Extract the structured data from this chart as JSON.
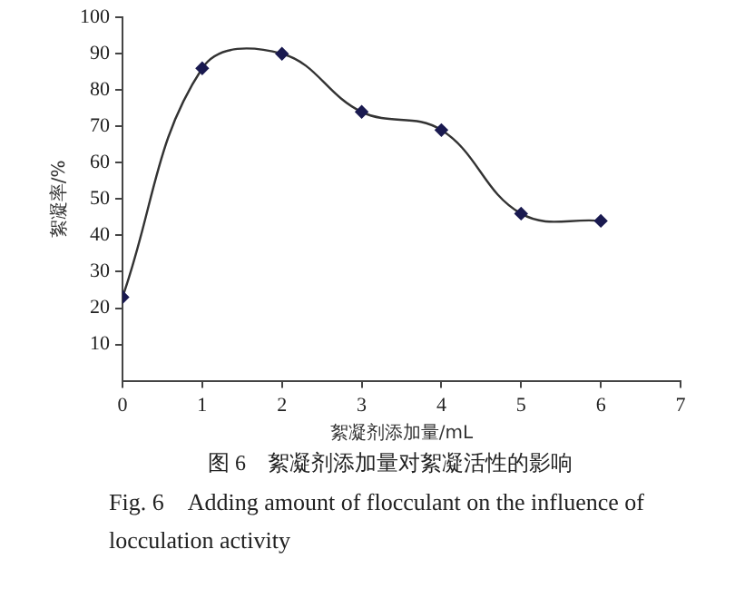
{
  "chart_data": {
    "type": "line",
    "xlabel": "絮凝剂添加量/mL",
    "ylabel": "絮凝率/%",
    "x": [
      0,
      1,
      2,
      3,
      4,
      5,
      6
    ],
    "series": [
      {
        "color": "#1a1a50",
        "values": [
          23,
          86,
          90,
          74,
          69,
          46,
          44
        ]
      }
    ],
    "xlim": [
      0,
      7
    ],
    "xticks": [
      0,
      1,
      2,
      3,
      4,
      5,
      6,
      7
    ],
    "ylim": [
      0,
      100
    ],
    "yticks": [
      10,
      20,
      30,
      40,
      50,
      60,
      70,
      80,
      90,
      100
    ],
    "grid": false,
    "legend": false,
    "marker": "diamond",
    "line_style": "solid",
    "annotations": [
      "图 6　絮凝剂添加量对絮凝活性的影响",
      "Fig. 6　Adding amount of flocculant on the influence of locculation activity"
    ]
  }
}
